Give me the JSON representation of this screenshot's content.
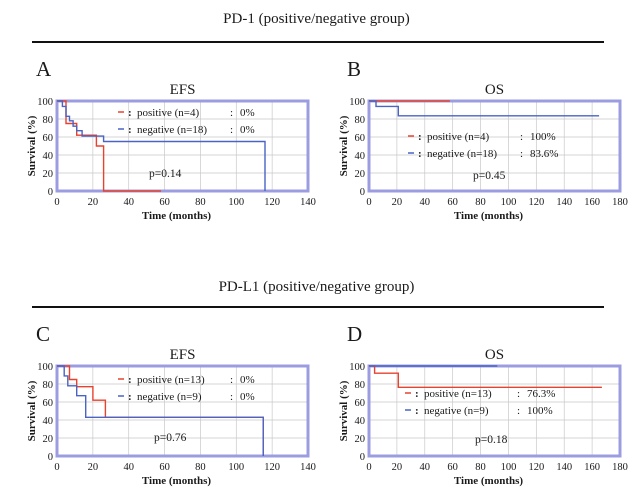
{
  "sections": [
    {
      "title": "PD-1 (positive/negative group)"
    },
    {
      "title": "PD-L1 (positive/negative group)"
    }
  ],
  "colors": {
    "positive": "#e8422f",
    "negative": "#4a63c4",
    "frame": "#9c9ce0",
    "grid": "#c8c8c8"
  },
  "chart_data": [
    {
      "id": "A",
      "type": "line",
      "title": "EFS",
      "xlabel": "Time (months)",
      "ylabel": "Survival (%)",
      "xlim": [
        0,
        140
      ],
      "ylim": [
        0,
        100
      ],
      "xticks": [
        "0",
        "20",
        "40",
        "60",
        "80",
        "100",
        "120",
        "140"
      ],
      "yticks": [
        "0",
        "20",
        "40",
        "60",
        "80",
        "100"
      ],
      "pvalue": "p=0.14",
      "series": [
        {
          "name": "positive (n=4)",
          "stat": "0%",
          "color": "#e8422f",
          "x": [
            0,
            5,
            5,
            11,
            11,
            22,
            22,
            26,
            26,
            58
          ],
          "y": [
            100,
            100,
            75,
            75,
            62,
            62,
            50,
            50,
            0,
            0
          ]
        },
        {
          "name": "negative (n=18)",
          "stat": "0%",
          "color": "#4a63c4",
          "x": [
            0,
            3,
            3,
            5,
            5,
            7,
            7,
            9,
            9,
            11,
            11,
            14,
            14,
            26,
            26,
            116,
            116
          ],
          "y": [
            100,
            100,
            94,
            94,
            83,
            83,
            78,
            78,
            72,
            72,
            67,
            67,
            61,
            61,
            55,
            55,
            0
          ]
        }
      ]
    },
    {
      "id": "B",
      "type": "line",
      "title": "OS",
      "xlabel": "Time (months)",
      "ylabel": "Survival (%)",
      "xlim": [
        0,
        180
      ],
      "ylim": [
        0,
        100
      ],
      "xticks": [
        "0",
        "20",
        "40",
        "60",
        "80",
        "100",
        "120",
        "140",
        "160",
        "180"
      ],
      "yticks": [
        "0",
        "20",
        "40",
        "60",
        "80",
        "100"
      ],
      "pvalue": "p=0.45",
      "series": [
        {
          "name": "positive (n=4)",
          "stat": "100%",
          "color": "#e8422f",
          "x": [
            0,
            58
          ],
          "y": [
            100,
            100
          ]
        },
        {
          "name": "negative (n=18)",
          "stat": "83.6%",
          "color": "#4a63c4",
          "x": [
            0,
            5,
            5,
            21,
            21,
            165
          ],
          "y": [
            100,
            100,
            94,
            94,
            83.6,
            83.6
          ]
        }
      ]
    },
    {
      "id": "C",
      "type": "line",
      "title": "EFS",
      "xlabel": "Time (months)",
      "ylabel": "Survival (%)",
      "xlim": [
        0,
        140
      ],
      "ylim": [
        0,
        100
      ],
      "xticks": [
        "0",
        "20",
        "40",
        "60",
        "80",
        "100",
        "120",
        "140"
      ],
      "yticks": [
        "0",
        "20",
        "40",
        "60",
        "80",
        "100"
      ],
      "pvalue": "p=0.76",
      "series": [
        {
          "name": "positive (n=13)",
          "stat": "0%",
          "color": "#e8422f",
          "x": [
            0,
            7,
            7,
            11,
            11,
            20,
            20,
            27,
            27,
            115,
            115
          ],
          "y": [
            100,
            100,
            85,
            85,
            77,
            77,
            62,
            62,
            43,
            43,
            0
          ]
        },
        {
          "name": "negative (n=9)",
          "stat": "0%",
          "color": "#4a63c4",
          "x": [
            0,
            4,
            4,
            6,
            6,
            11,
            11,
            16,
            16,
            115,
            115
          ],
          "y": [
            100,
            100,
            89,
            89,
            78,
            78,
            67,
            67,
            43,
            43,
            0
          ]
        }
      ]
    },
    {
      "id": "D",
      "type": "line",
      "title": "OS",
      "xlabel": "Time (months)",
      "ylabel": "Survival (%)",
      "xlim": [
        0,
        180
      ],
      "ylim": [
        0,
        100
      ],
      "xticks": [
        "0",
        "20",
        "40",
        "60",
        "80",
        "100",
        "120",
        "140",
        "160",
        "180"
      ],
      "yticks": [
        "0",
        "20",
        "40",
        "60",
        "80",
        "100"
      ],
      "pvalue": "p=0.18",
      "series": [
        {
          "name": "positive (n=13)",
          "stat": "76.3%",
          "color": "#e8422f",
          "x": [
            0,
            4,
            4,
            21,
            21,
            167
          ],
          "y": [
            100,
            100,
            92,
            92,
            76.3,
            76.3
          ]
        },
        {
          "name": "negative (n=9)",
          "stat": "100%",
          "color": "#4a63c4",
          "x": [
            0,
            92
          ],
          "y": [
            100,
            100
          ]
        }
      ]
    }
  ]
}
